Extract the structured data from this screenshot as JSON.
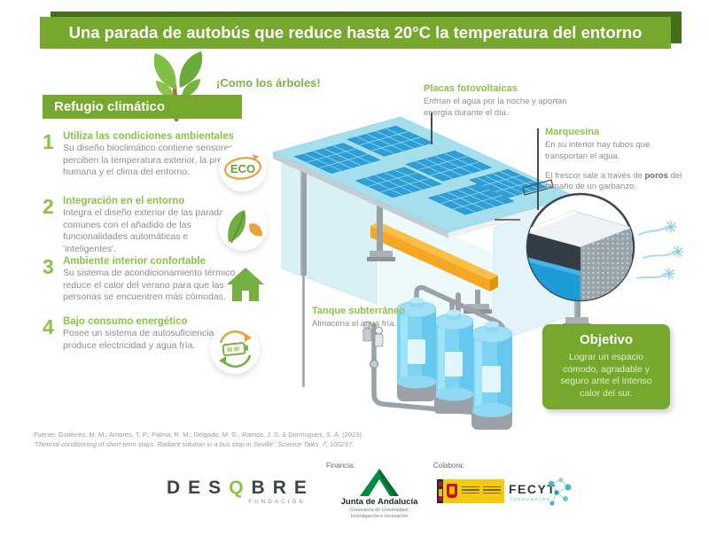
{
  "title": "Una parada de autobús que reduce hasta 20°C la temperatura del entorno",
  "tagline": "¡Como los árboles!",
  "section": {
    "heading": "Refugio climático"
  },
  "eco_badge_label": "ECO",
  "list": {
    "items": [
      {
        "number": "1",
        "title": "Utiliza las condiciones ambientales",
        "body": "Su diseño bioclimático contiene sensores que perciben la temperatura exterior, la presencia humana y el clima del entorno."
      },
      {
        "number": "2",
        "title": "Integración en el entorno",
        "body": "Integra el diseño exterior de las paradas comunes con el añadido de las funcionalidades automáticas e 'inteligentes'."
      },
      {
        "number": "3",
        "title": "Ambiente interior confortable",
        "body": "Su sistema de acondicionamiento térmico reduce el calor del verano para que las personas se encuentren más cómodas."
      },
      {
        "number": "4",
        "title": "Bajo consumo energético",
        "body": "Posee un sistema de autosuficiencia que produce electricidad y agua fría."
      }
    ]
  },
  "annotations": {
    "solar": {
      "title": "Placas fotovoltaicas",
      "body": "Enfrían el agua por la noche y aportan energía durante el día."
    },
    "marquee": {
      "title": "Marquesina",
      "body": "En su interior hay tubos que transportan el agua.",
      "detail_prefix": "El frescor sale a través de ",
      "detail_bold": "poros",
      "detail_suffix": " del tamaño de un garbanzo."
    },
    "tank": {
      "title": "Tanque subterráneo",
      "body": "Almacena el agua fría."
    }
  },
  "objective": {
    "title": "Objetivo",
    "body": "Lograr un espacio cómodo, agradable y seguro ante el intenso calor del sur."
  },
  "source": {
    "line1": "Fuente: Gutiérrez, M. M.; Amores, T. P.; Palma, R. M.; Delgado, M. G.; Ramos, J. S. & Domínguez, S. Á. (2023).",
    "line2": "'Thermal conditioning of short-term stays. Radiant solution in a bus stop in Seville'. Science Talks, 7, 100237."
  },
  "footer": {
    "desqbre": {
      "part1": "DES",
      "q": "Q",
      "part2": "BRE",
      "sub": "FUNDACIÓN"
    },
    "financia_label": "Financia:",
    "junta": {
      "name": "Junta de Andalucía",
      "dept1": "Consejería de Universidad,",
      "dept2": "Investigación e Innovación"
    },
    "colabora_label": "Colabora:",
    "fecyt": {
      "name": "FECYT",
      "sub": "innovación"
    }
  },
  "colors": {
    "banner_green": "#76a82e",
    "banner_shadow_green": "#44701c",
    "accent_green": "#8bc34a",
    "body_gray": "#8e8e8e",
    "panel_blue": "#2e9fd6",
    "roof_cyan": "#a5dfee",
    "bench_orange": "#f5a623",
    "tank_blue": "#7cd3f2",
    "fecyt_teal": "#3fb6c4",
    "gov_yellow": "#f3c912"
  }
}
